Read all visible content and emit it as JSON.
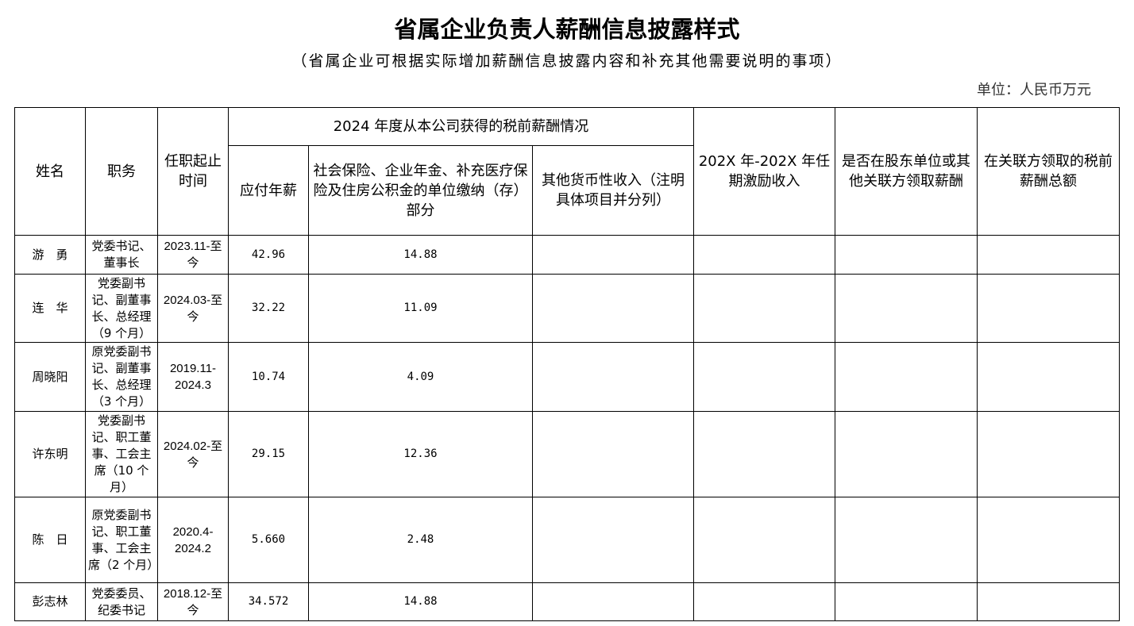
{
  "title": "省属企业负责人薪酬信息披露样式",
  "subtitle": "（省属企业可根据实际增加薪酬信息披露内容和补充其他需要说明的事项）",
  "unit": "单位：人民币万元",
  "headers": {
    "name": "姓名",
    "position": "职务",
    "term": "任职起止时间",
    "group": "2024 年度从本公司获得的税前薪酬情况",
    "salary": "应付年薪",
    "insurance": "社会保险、企业年金、补充医疗保险及住房公积金的单位缴纳（存）部分",
    "other": "其他货币性收入（注明具体项目并分列）",
    "incentive": "202X 年-202X 年任期激励收入",
    "shareholder": "是否在股东单位或其他关联方领取薪酬",
    "related_total": "在关联方领取的税前薪酬总额"
  },
  "rows": [
    {
      "name": "游　勇",
      "position": "党委书记、董事长",
      "term": "2023.11-至今",
      "salary": "42.96",
      "insurance": "14.88"
    },
    {
      "name": "连　华",
      "position": "党委副书记、副董事长、总经理（9 个月）",
      "term": "2024.03-至今",
      "salary": "32.22",
      "insurance": "11.09"
    },
    {
      "name": "周晓阳",
      "position": "原党委副书记、副董事长、总经理（3 个月）",
      "term": "2019.11-2024.3",
      "salary": "10.74",
      "insurance": "4.09"
    },
    {
      "name": "许东明",
      "position": "党委副书记、职工董事、工会主席（10 个月）",
      "term": "2024.02-至今",
      "salary": "29.15",
      "insurance": "12.36"
    },
    {
      "name": "陈　日",
      "position": "原党委副书记、职工董事、工会主席（2 个月）",
      "term": "2020.4-2024.2",
      "salary": "5.660",
      "insurance": "2.48"
    },
    {
      "name": "彭志林",
      "position": "党委委员、纪委书记",
      "term": "2018.12-至今",
      "salary": "34.572",
      "insurance": "14.88"
    }
  ]
}
